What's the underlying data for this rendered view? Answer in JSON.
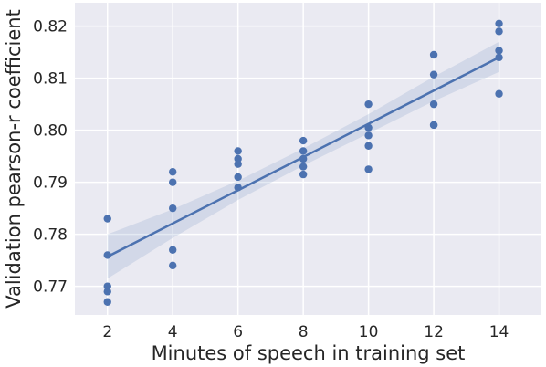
{
  "chart_data": {
    "type": "scatter",
    "xlabel": "Minutes of speech in training set",
    "ylabel": "Validation pearson-r coefficient",
    "xlim": [
      1,
      15.3
    ],
    "ylim": [
      0.7645,
      0.8245
    ],
    "x_ticks": [
      2,
      4,
      6,
      8,
      10,
      12,
      14
    ],
    "x_tick_labels": [
      "2",
      "4",
      "6",
      "8",
      "10",
      "12",
      "14"
    ],
    "y_ticks": [
      0.77,
      0.78,
      0.79,
      0.8,
      0.81,
      0.82
    ],
    "y_tick_labels": [
      "0.77",
      "0.78",
      "0.79",
      "0.80",
      "0.81",
      "0.82"
    ],
    "grid": true,
    "background_color": "#eaeaf2",
    "point_color": "#4c72b0",
    "points": [
      {
        "x": 2,
        "y": 0.783
      },
      {
        "x": 2,
        "y": 0.776
      },
      {
        "x": 2,
        "y": 0.77
      },
      {
        "x": 2,
        "y": 0.769
      },
      {
        "x": 2,
        "y": 0.767
      },
      {
        "x": 4,
        "y": 0.792
      },
      {
        "x": 4,
        "y": 0.79
      },
      {
        "x": 4,
        "y": 0.785
      },
      {
        "x": 4,
        "y": 0.777
      },
      {
        "x": 4,
        "y": 0.774
      },
      {
        "x": 6,
        "y": 0.796
      },
      {
        "x": 6,
        "y": 0.7945
      },
      {
        "x": 6,
        "y": 0.7935
      },
      {
        "x": 6,
        "y": 0.791
      },
      {
        "x": 6,
        "y": 0.789
      },
      {
        "x": 8,
        "y": 0.798
      },
      {
        "x": 8,
        "y": 0.796
      },
      {
        "x": 8,
        "y": 0.7945
      },
      {
        "x": 8,
        "y": 0.793
      },
      {
        "x": 8,
        "y": 0.7915
      },
      {
        "x": 10,
        "y": 0.805
      },
      {
        "x": 10,
        "y": 0.8005
      },
      {
        "x": 10,
        "y": 0.799
      },
      {
        "x": 10,
        "y": 0.797
      },
      {
        "x": 10,
        "y": 0.7925
      },
      {
        "x": 12,
        "y": 0.8145
      },
      {
        "x": 12,
        "y": 0.8107
      },
      {
        "x": 12,
        "y": 0.805
      },
      {
        "x": 12,
        "y": 0.801
      },
      {
        "x": 12,
        "y": 0.801
      },
      {
        "x": 14,
        "y": 0.8205
      },
      {
        "x": 14,
        "y": 0.819
      },
      {
        "x": 14,
        "y": 0.8153
      },
      {
        "x": 14,
        "y": 0.814
      },
      {
        "x": 14,
        "y": 0.807
      }
    ],
    "regression": {
      "x": [
        2,
        14
      ],
      "y": [
        0.7757,
        0.814
      ],
      "ci_x": [
        2,
        4,
        6,
        8,
        10,
        12,
        14
      ],
      "ci_lower": [
        0.7715,
        0.7793,
        0.7866,
        0.7932,
        0.7994,
        0.8056,
        0.8112
      ],
      "ci_upper": [
        0.78,
        0.7848,
        0.7903,
        0.7965,
        0.8031,
        0.8103,
        0.817
      ]
    }
  }
}
